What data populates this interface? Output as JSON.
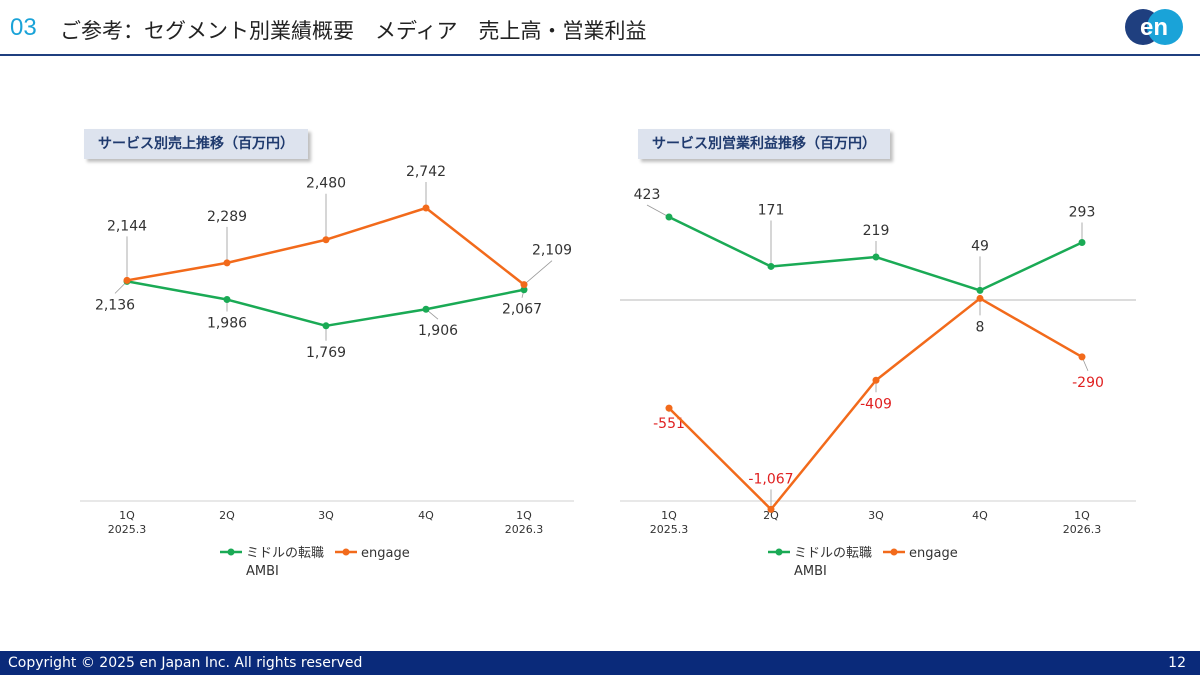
{
  "header": {
    "section_number": "03",
    "title": "ご参考：セグメント別業績概要　メディア　売上高・営業利益",
    "logo_text": "en",
    "colors": {
      "accent": "#1aa3d8",
      "rule": "#1f3f7f",
      "logo_dark": "#1f3f7f",
      "logo_light": "#1aa3d8"
    }
  },
  "footer": {
    "copyright": "Copyright © 2025 en Japan Inc. All rights reserved",
    "page_number": "12",
    "background": "#0a2a7a"
  },
  "chart_data": [
    {
      "type": "line",
      "title": "サービス別売上推移（百万円）",
      "categories": [
        "1Q\n2025.3",
        "2Q",
        "3Q",
        "4Q",
        "1Q\n2026.3"
      ],
      "series": [
        {
          "name": "ミドルの転職\nAMBI",
          "color": "#1aaa55",
          "values": [
            2136,
            1986,
            1769,
            1906,
            2067
          ],
          "labels": [
            "2,136",
            "1,986",
            "1,769",
            "1,906",
            "2,067"
          ]
        },
        {
          "name": "engage",
          "color": "#f26a1b",
          "values": [
            2144,
            2289,
            2480,
            2742,
            2109
          ],
          "labels": [
            "2,144",
            "2,289",
            "2,480",
            "2,742",
            "2,109"
          ]
        }
      ],
      "ylim": [
        0,
        3200
      ],
      "legend_position": "bottom",
      "grid": false
    },
    {
      "type": "line",
      "title": "サービス別営業利益推移（百万円）",
      "categories": [
        "1Q\n2025.3",
        "2Q",
        "3Q",
        "4Q",
        "1Q\n2026.3"
      ],
      "series": [
        {
          "name": "ミドルの転職\nAMBI",
          "color": "#1aaa55",
          "values": [
            423,
            171,
            219,
            49,
            293
          ],
          "labels": [
            "423",
            "171",
            "219",
            "49",
            "293"
          ]
        },
        {
          "name": "engage",
          "color": "#f26a1b",
          "values": [
            -551,
            -1067,
            -409,
            8,
            -290
          ],
          "labels": [
            "-551",
            "-1,067",
            "-409",
            "8",
            "-290"
          ]
        }
      ],
      "ylim": [
        -1067,
        560
      ],
      "zero_line": true,
      "negative_label_color": "#e02020",
      "legend_position": "bottom",
      "grid": false
    }
  ]
}
